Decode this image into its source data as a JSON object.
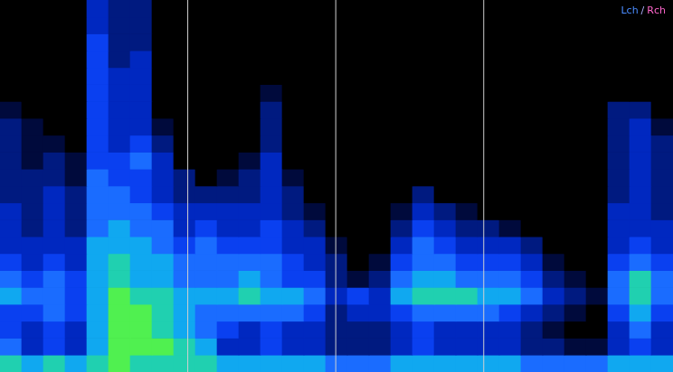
{
  "chart_data": {
    "type": "heatmap",
    "xlim": [
      0,
      31
    ],
    "ylim": [
      0,
      22
    ],
    "zlim": [
      0,
      9
    ],
    "tick_labels": false,
    "grid": false,
    "colormap": [
      "#000000",
      "#000a3c",
      "#001a80",
      "#0028c0",
      "#0a40f0",
      "#1a6cff",
      "#10a8f0",
      "#20d0b0",
      "#50f050",
      "#c0f020"
    ],
    "vlines": {
      "x": [
        7.67,
        15.46,
        23.25
      ],
      "color": "#d0d0d0"
    },
    "annotations": [
      {
        "text": "Lch",
        "color": "#4a8cff"
      },
      {
        "text": "/",
        "color": "#b0b0ff"
      },
      {
        "text": "Rch",
        "color": "#ff66cc"
      }
    ],
    "cells": [
      [
        0,
        0,
        0,
        0,
        3,
        2,
        2,
        0,
        0,
        0,
        0,
        0,
        0,
        0,
        0,
        0,
        0,
        0,
        0,
        0,
        0,
        0,
        0,
        0,
        0,
        0,
        0,
        0,
        0,
        0,
        0
      ],
      [
        0,
        0,
        0,
        0,
        3,
        2,
        2,
        0,
        0,
        0,
        0,
        0,
        0,
        0,
        0,
        0,
        0,
        0,
        0,
        0,
        0,
        0,
        0,
        0,
        0,
        0,
        0,
        0,
        0,
        0,
        0
      ],
      [
        0,
        0,
        0,
        0,
        4,
        2,
        2,
        0,
        0,
        0,
        0,
        0,
        0,
        0,
        0,
        0,
        0,
        0,
        0,
        0,
        0,
        0,
        0,
        0,
        0,
        0,
        0,
        0,
        0,
        0,
        0
      ],
      [
        0,
        0,
        0,
        0,
        4,
        2,
        3,
        0,
        0,
        0,
        0,
        0,
        0,
        0,
        0,
        0,
        0,
        0,
        0,
        0,
        0,
        0,
        0,
        0,
        0,
        0,
        0,
        0,
        0,
        0,
        0
      ],
      [
        0,
        0,
        0,
        0,
        4,
        3,
        3,
        0,
        0,
        0,
        0,
        0,
        0,
        0,
        0,
        0,
        0,
        0,
        0,
        0,
        0,
        0,
        0,
        0,
        0,
        0,
        0,
        0,
        0,
        0,
        0
      ],
      [
        0,
        0,
        0,
        0,
        4,
        3,
        3,
        0,
        0,
        0,
        0,
        0,
        1,
        0,
        0,
        0,
        0,
        0,
        0,
        0,
        0,
        0,
        0,
        0,
        0,
        0,
        0,
        0,
        0,
        0,
        0
      ],
      [
        1,
        0,
        0,
        0,
        4,
        3,
        3,
        0,
        0,
        0,
        0,
        0,
        2,
        0,
        0,
        0,
        0,
        0,
        0,
        0,
        0,
        0,
        0,
        0,
        0,
        0,
        0,
        0,
        2,
        2,
        0
      ],
      [
        2,
        1,
        0,
        0,
        4,
        3,
        3,
        1,
        0,
        0,
        0,
        0,
        2,
        0,
        0,
        0,
        0,
        0,
        0,
        0,
        0,
        0,
        0,
        0,
        0,
        0,
        0,
        0,
        2,
        3,
        1
      ],
      [
        2,
        1,
        1,
        0,
        4,
        3,
        4,
        2,
        0,
        0,
        0,
        0,
        2,
        0,
        0,
        0,
        0,
        0,
        0,
        0,
        0,
        0,
        0,
        0,
        0,
        0,
        0,
        0,
        2,
        3,
        2
      ],
      [
        2,
        1,
        2,
        1,
        4,
        4,
        5,
        3,
        0,
        0,
        0,
        1,
        3,
        0,
        0,
        0,
        0,
        0,
        0,
        0,
        0,
        0,
        0,
        0,
        0,
        0,
        0,
        0,
        2,
        3,
        2
      ],
      [
        2,
        2,
        2,
        1,
        5,
        4,
        4,
        3,
        2,
        0,
        1,
        2,
        3,
        1,
        0,
        0,
        0,
        0,
        0,
        0,
        0,
        0,
        0,
        0,
        0,
        0,
        0,
        0,
        2,
        3,
        2
      ],
      [
        2,
        2,
        3,
        2,
        5,
        5,
        4,
        3,
        2,
        2,
        2,
        2,
        3,
        2,
        0,
        0,
        0,
        0,
        0,
        2,
        0,
        0,
        0,
        0,
        0,
        0,
        0,
        0,
        2,
        3,
        2
      ],
      [
        3,
        2,
        3,
        2,
        5,
        5,
        5,
        4,
        3,
        3,
        3,
        3,
        3,
        2,
        1,
        0,
        0,
        0,
        1,
        3,
        2,
        1,
        0,
        0,
        0,
        0,
        0,
        0,
        3,
        3,
        2
      ],
      [
        3,
        2,
        3,
        2,
        5,
        6,
        5,
        5,
        3,
        4,
        3,
        3,
        4,
        3,
        2,
        0,
        0,
        0,
        2,
        4,
        3,
        2,
        2,
        1,
        0,
        0,
        0,
        0,
        3,
        3,
        3
      ],
      [
        3,
        3,
        3,
        3,
        6,
        6,
        6,
        5,
        4,
        5,
        4,
        4,
        4,
        3,
        3,
        1,
        0,
        0,
        3,
        5,
        4,
        3,
        3,
        3,
        2,
        0,
        0,
        0,
        3,
        4,
        3
      ],
      [
        4,
        3,
        4,
        3,
        6,
        7,
        6,
        6,
        5,
        5,
        5,
        5,
        5,
        4,
        3,
        2,
        0,
        1,
        4,
        5,
        5,
        4,
        4,
        4,
        3,
        1,
        0,
        0,
        4,
        5,
        4
      ],
      [
        5,
        4,
        5,
        4,
        6,
        7,
        6,
        6,
        5,
        5,
        5,
        6,
        5,
        4,
        4,
        2,
        1,
        2,
        5,
        6,
        6,
        5,
        5,
        5,
        4,
        2,
        1,
        0,
        5,
        7,
        5
      ],
      [
        6,
        5,
        5,
        4,
        6,
        8,
        7,
        7,
        6,
        6,
        6,
        7,
        6,
        6,
        5,
        3,
        4,
        3,
        6,
        7,
        7,
        7,
        6,
        6,
        5,
        3,
        2,
        1,
        5,
        7,
        5
      ],
      [
        4,
        4,
        5,
        4,
        6,
        8,
        8,
        7,
        6,
        5,
        5,
        5,
        5,
        5,
        4,
        2,
        3,
        3,
        4,
        5,
        5,
        5,
        5,
        4,
        3,
        2,
        1,
        0,
        4,
        6,
        4
      ],
      [
        4,
        3,
        4,
        3,
        6,
        8,
        8,
        7,
        6,
        5,
        4,
        3,
        4,
        3,
        3,
        2,
        2,
        2,
        3,
        4,
        3,
        3,
        3,
        3,
        2,
        1,
        0,
        0,
        3,
        5,
        3
      ],
      [
        5,
        3,
        4,
        3,
        6,
        8,
        8,
        8,
        7,
        6,
        3,
        3,
        4,
        3,
        3,
        2,
        2,
        2,
        3,
        4,
        3,
        3,
        3,
        3,
        2,
        2,
        1,
        1,
        3,
        4,
        3
      ],
      [
        7,
        6,
        7,
        6,
        7,
        8,
        7,
        7,
        7,
        7,
        6,
        6,
        6,
        6,
        6,
        5,
        5,
        5,
        6,
        6,
        6,
        6,
        6,
        6,
        5,
        5,
        5,
        5,
        6,
        6,
        6
      ]
    ]
  }
}
